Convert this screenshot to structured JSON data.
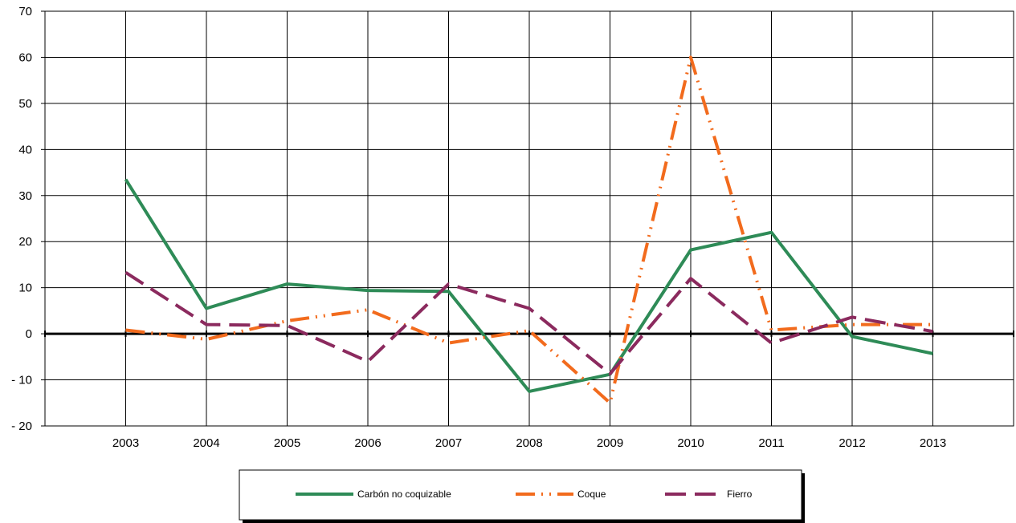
{
  "chart_data": {
    "type": "line",
    "categories": [
      "2003",
      "2004",
      "2005",
      "2006",
      "2007",
      "2008",
      "2009",
      "2010",
      "2011",
      "2012",
      "2013"
    ],
    "y_tick_labels": [
      "70",
      "60",
      "50",
      "40",
      "30",
      "20",
      "10",
      "0",
      "- 10",
      "- 20"
    ],
    "y_ticks": [
      70,
      60,
      50,
      40,
      30,
      20,
      10,
      0,
      -10,
      -20
    ],
    "ylim": [
      -20,
      70
    ],
    "grid": true,
    "legend_position": "bottom",
    "series": [
      {
        "name": "Carbón no coquizable",
        "color": "#2e8b57",
        "style": "solid",
        "values": [
          33.5,
          5.5,
          10.8,
          9.4,
          9.2,
          -12.5,
          -8.8,
          18.2,
          22.0,
          -0.6,
          -4.3
        ]
      },
      {
        "name": "Coque",
        "color": "#f26b1d",
        "style": "dashdotdot",
        "values": [
          0.8,
          -1.2,
          2.8,
          5.2,
          -2.0,
          0.7,
          -15.0,
          60.0,
          0.8,
          2.0,
          2.0
        ]
      },
      {
        "name": "Fierro",
        "color": "#8b2a5e",
        "style": "longdash",
        "values": [
          13.3,
          2.0,
          1.8,
          -6.0,
          10.8,
          5.5,
          -8.7,
          12.0,
          -2.0,
          3.6,
          0.5
        ]
      }
    ]
  }
}
